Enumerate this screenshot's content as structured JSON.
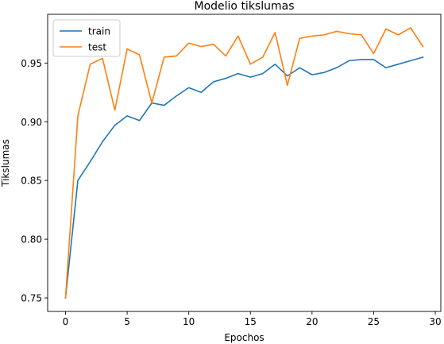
{
  "chart_data": {
    "type": "line",
    "title": "Modelio tikslumas",
    "xlabel": "Epochos",
    "ylabel": "Tikslumas",
    "xlim": [
      -1.45,
      30.45
    ],
    "ylim": [
      0.7385,
      0.9915
    ],
    "xticks": [
      0,
      5,
      10,
      15,
      20,
      25,
      30
    ],
    "yticks": [
      0.75,
      0.8,
      0.85,
      0.9,
      0.95
    ],
    "ytick_labels": [
      "0.75",
      "0.80",
      "0.85",
      "0.90",
      "0.95"
    ],
    "grid": false,
    "legend_position": "upper left",
    "x": [
      0,
      1,
      2,
      3,
      4,
      5,
      6,
      7,
      8,
      9,
      10,
      11,
      12,
      13,
      14,
      15,
      16,
      17,
      18,
      19,
      20,
      21,
      22,
      23,
      24,
      25,
      26,
      27,
      28,
      29
    ],
    "series": [
      {
        "name": "train",
        "color": "#1f77b4",
        "values": [
          0.75,
          0.85,
          0.866,
          0.883,
          0.897,
          0.905,
          0.901,
          0.916,
          0.914,
          0.922,
          0.929,
          0.925,
          0.934,
          0.937,
          0.941,
          0.938,
          0.941,
          0.949,
          0.939,
          0.946,
          0.94,
          0.942,
          0.946,
          0.952,
          0.953,
          0.953,
          0.946,
          0.949,
          0.952,
          0.955
        ]
      },
      {
        "name": "test",
        "color": "#ff7f0e",
        "values": [
          0.75,
          0.905,
          0.949,
          0.954,
          0.91,
          0.962,
          0.957,
          0.916,
          0.955,
          0.956,
          0.967,
          0.964,
          0.966,
          0.956,
          0.973,
          0.949,
          0.955,
          0.976,
          0.931,
          0.971,
          0.973,
          0.974,
          0.977,
          0.975,
          0.974,
          0.958,
          0.979,
          0.974,
          0.98,
          0.964
        ]
      }
    ]
  }
}
